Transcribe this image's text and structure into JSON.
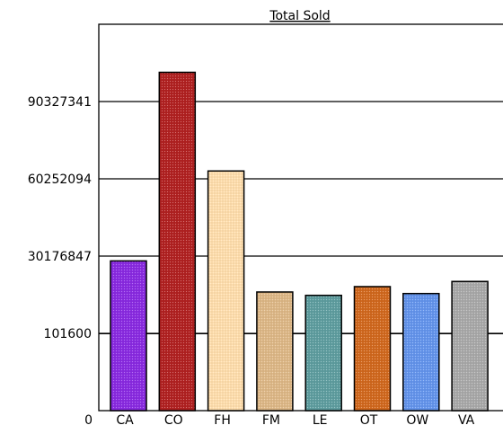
{
  "chart_data": {
    "type": "bar",
    "title": "Total Sold",
    "xlabel": "",
    "ylabel": "",
    "categories": [
      "CA",
      "CO",
      "FH",
      "FM",
      "LE",
      "OT",
      "OW",
      "VA"
    ],
    "values": [
      28300000,
      101700000,
      63300000,
      16200000,
      14900000,
      18300000,
      15600000,
      20300000
    ],
    "y_ticks": [
      {
        "label": "0",
        "value": 0
      },
      {
        "label": "101600",
        "value": 101600
      },
      {
        "label": "30176847",
        "value": 30176847
      },
      {
        "label": "60252094",
        "value": 60252094
      },
      {
        "label": "90327341",
        "value": 90327341
      }
    ],
    "ylim": [
      -29973647,
      120402588
    ],
    "grid": true,
    "colors": [
      "#8a2be2",
      "#b22222",
      "#ffdead",
      "#deb887",
      "#5f9ea0",
      "#d2691e",
      "#6495ed",
      "#a9a9a9"
    ]
  }
}
